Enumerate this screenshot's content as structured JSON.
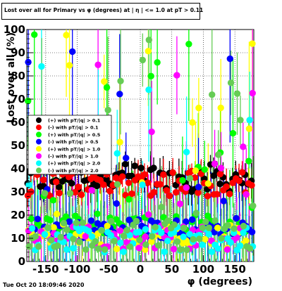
{
  "chart_data": {
    "type": "scatter",
    "title": "Lost over all for Primary vs φ (degrees) at | η | <= 1.0 at pT > 0.11",
    "xlabel": "φ (degrees)",
    "ylabel": "Lost over all (%)",
    "xlim": [
      -180,
      180
    ],
    "ylim": [
      0,
      100
    ],
    "x_ticks": [
      "-150",
      "-100",
      "-50",
      "0",
      "50",
      "100",
      "150"
    ],
    "y_ticks": [
      "0",
      "10",
      "20",
      "30",
      "40",
      "50",
      "60",
      "70",
      "80",
      "90",
      "100"
    ],
    "grid": true,
    "legend_position": "left-middle",
    "series": [
      {
        "name": "(+) with pT/|q| > 0.1",
        "color": "#000000",
        "marker": "circle",
        "band": [
          30,
          42
        ],
        "ymin": 2,
        "ymax": 100
      },
      {
        "name": "(-) with pT/|q| > 0.1",
        "color": "#ff0000",
        "marker": "circle",
        "band": [
          28,
          40
        ],
        "ymin": 2,
        "ymax": 100
      },
      {
        "name": "(+) with pT/|q| > 0.5",
        "color": "#00ff00",
        "marker": "circle",
        "band": [
          11,
          20
        ],
        "ymin": 2,
        "ymax": 100
      },
      {
        "name": "(-) with pT/|q| > 0.5",
        "color": "#0000ff",
        "marker": "circle",
        "band": [
          10,
          19
        ],
        "ymin": 2,
        "ymax": 100
      },
      {
        "name": "(+) with pT/|q| > 1.0",
        "color": "#ffff00",
        "marker": "circle",
        "band": [
          5,
          16
        ],
        "ymin": 2,
        "ymax": 100
      },
      {
        "name": "(-) with pT/|q| > 1.0",
        "color": "#ff00ff",
        "marker": "circle",
        "band": [
          5,
          16
        ],
        "ymin": 2,
        "ymax": 100
      },
      {
        "name": "(+) with pT/|q| > 2.0",
        "color": "#00ffff",
        "marker": "circle",
        "band": [
          4,
          15
        ],
        "ymin": 2,
        "ymax": 100
      },
      {
        "name": "(-) with pT/|q| > 2.0",
        "color": "#66cc55",
        "marker": "circle",
        "band": [
          5,
          18
        ],
        "ymin": 2,
        "ymax": 100
      }
    ]
  },
  "footer": "Tue Oct 20 18:09:46 2020"
}
